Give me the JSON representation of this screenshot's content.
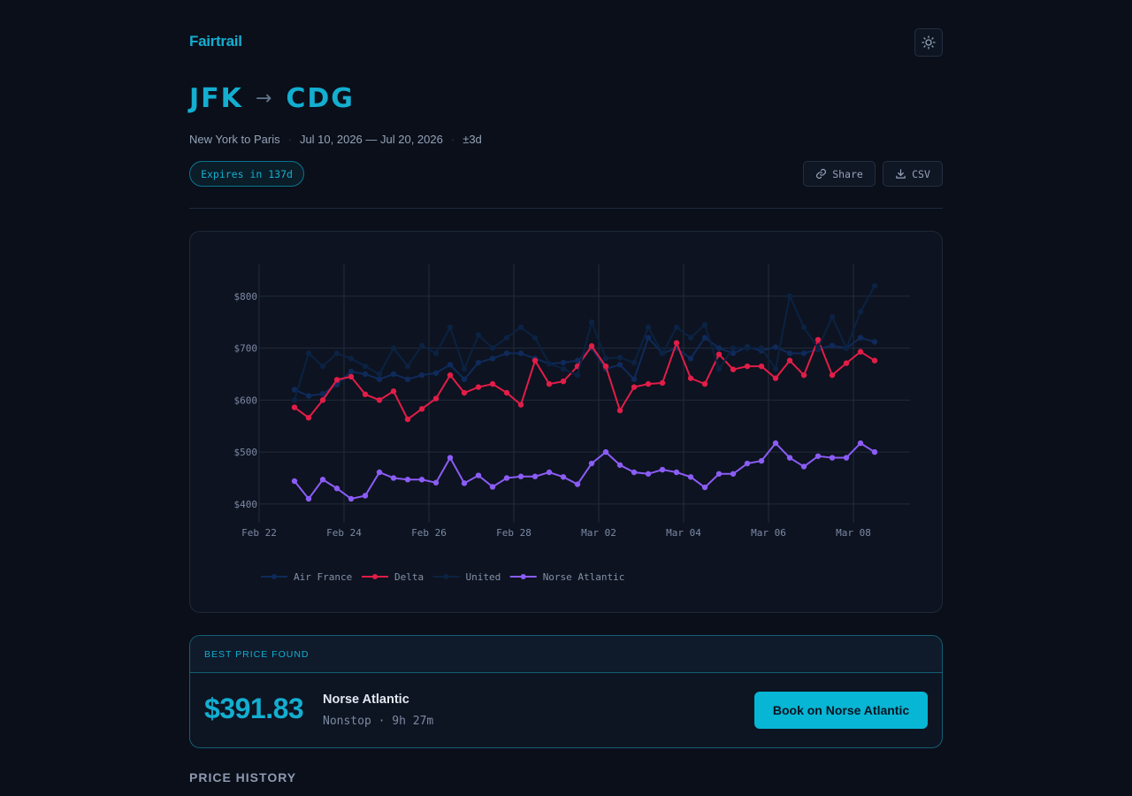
{
  "header": {
    "brand": "Fairtrail",
    "theme_icon": "sun-icon"
  },
  "route": {
    "origin": "JFK",
    "arrow": "→",
    "destination": "CDG"
  },
  "subtitle": {
    "cities": "New York to Paris",
    "dates": "Jul 10, 2026 — Jul 20, 2026",
    "flex": "±3d"
  },
  "badge": "Expires in 137d",
  "actions": {
    "share": "Share",
    "csv": "CSV"
  },
  "colors": {
    "accent": "#06b6d4",
    "air_france": "#0f2a5a",
    "delta": "#e11d48",
    "united": "#0b2242",
    "norse": "#8b5cf6"
  },
  "chart_data": {
    "type": "line",
    "ylim": [
      364,
      861
    ],
    "xlim": [
      "Feb 22 00:00",
      "Mar 09 08:00"
    ],
    "grid": true,
    "legend": "bottom",
    "y_ticks": [
      "$400",
      "$500",
      "$600",
      "$700",
      "$800"
    ],
    "y_tick_values": [
      400,
      500,
      600,
      700,
      800
    ],
    "x_ticks": [
      "Feb 22",
      "Feb 24",
      "Feb 26",
      "Feb 28",
      "Mar 02",
      "Mar 04",
      "Mar 06",
      "Mar 08"
    ],
    "x_start": "Feb 22 20:00",
    "x_step_hours": 8,
    "series": [
      {
        "name": "Air France",
        "color": "#0f2a5a",
        "values": [
          620,
          608,
          612,
          630,
          655,
          650,
          640,
          650,
          640,
          648,
          652,
          668,
          640,
          672,
          680,
          690,
          690,
          680,
          670,
          672,
          676,
          700,
          660,
          668,
          640,
          720,
          690,
          700,
          680,
          720,
          700,
          690,
          702,
          695,
          702,
          690,
          690,
          698,
          705,
          700,
          720,
          712
        ]
      },
      {
        "name": "Delta",
        "color": "#e11d48",
        "values": [
          586,
          566,
          600,
          639,
          645,
          611,
          600,
          617,
          563,
          583,
          603,
          648,
          614,
          625,
          631,
          614,
          591,
          676,
          631,
          636,
          665,
          704,
          665,
          580,
          625,
          631,
          633,
          710,
          642,
          631,
          688,
          659,
          665,
          665,
          642,
          676,
          648,
          716,
          648,
          671,
          693,
          676
        ]
      },
      {
        "name": "United",
        "color": "#0b2242",
        "values": [
          600,
          690,
          665,
          690,
          680,
          665,
          650,
          700,
          665,
          705,
          690,
          740,
          660,
          725,
          700,
          720,
          740,
          720,
          670,
          660,
          648,
          750,
          680,
          682,
          672,
          740,
          690,
          740,
          720,
          745,
          660,
          700,
          700,
          700,
          660,
          800,
          740,
          700,
          760,
          700,
          770,
          820
        ]
      },
      {
        "name": "Norse Atlantic",
        "color": "#8b5cf6",
        "values": [
          444,
          410,
          447,
          430,
          410,
          416,
          461,
          450,
          447,
          447,
          441,
          489,
          440,
          455,
          433,
          450,
          453,
          453,
          461,
          452,
          438,
          478,
          500,
          475,
          461,
          458,
          466,
          461,
          452,
          432,
          458,
          458,
          478,
          483,
          517,
          489,
          472,
          492,
          489,
          489,
          517,
          500
        ]
      }
    ]
  },
  "best_price": {
    "label": "BEST PRICE FOUND",
    "price": "$391.83",
    "airline": "Norse Atlantic",
    "details": "Nonstop · 9h 27m",
    "book_label": "Book on Norse Atlantic"
  },
  "section_title": "PRICE HISTORY"
}
